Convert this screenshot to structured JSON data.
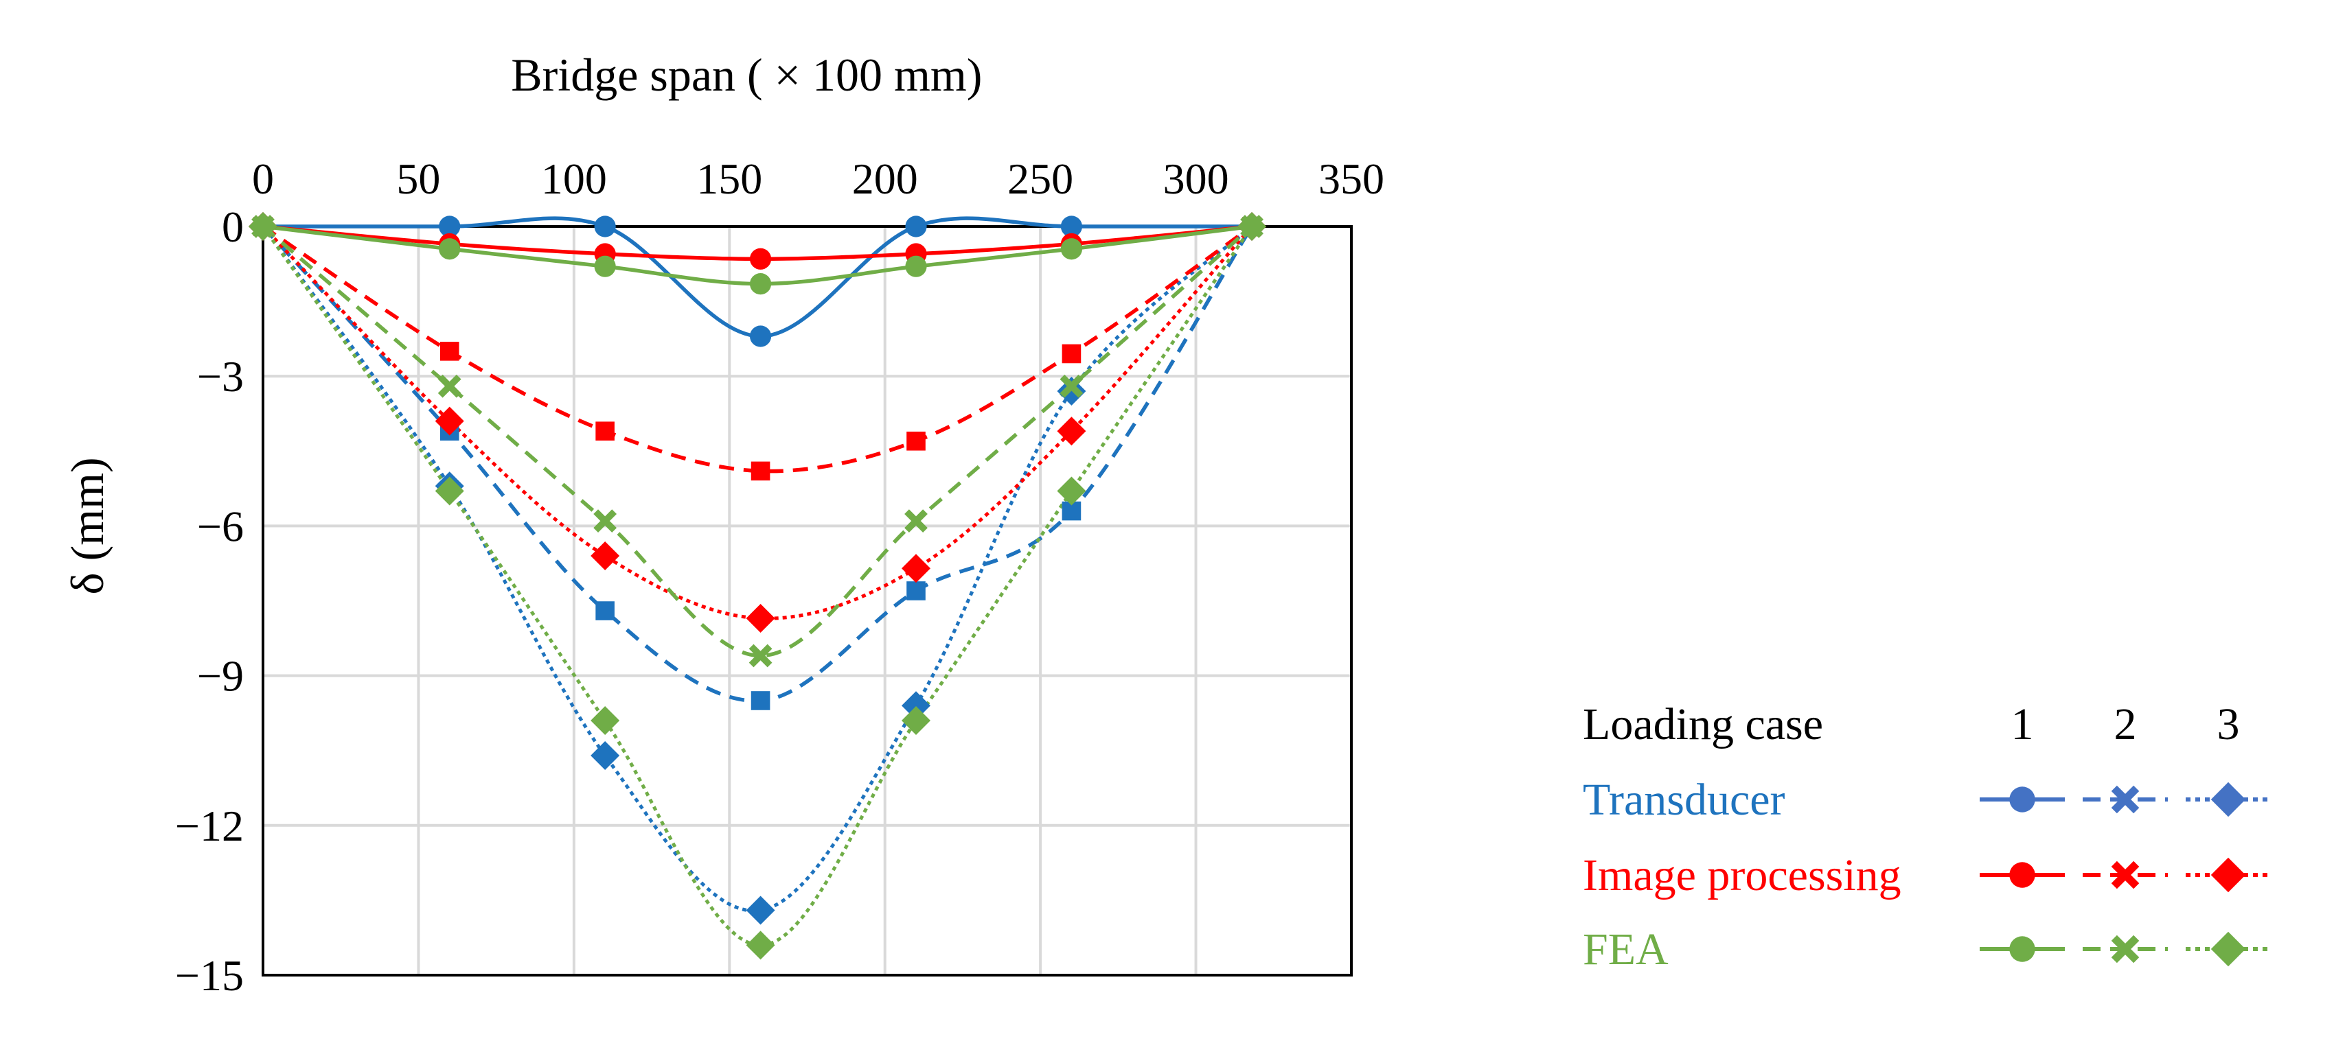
{
  "chart_data": {
    "type": "line",
    "xlabel": "Bridge span ( × 100 mm)",
    "ylabel": "δ (mm)",
    "xlim": [
      0,
      350
    ],
    "ylim": [
      -15,
      0
    ],
    "x_ticks": [
      0,
      50,
      100,
      150,
      200,
      250,
      300,
      350
    ],
    "y_ticks": [
      0,
      -3,
      -6,
      -9,
      -12,
      -15
    ],
    "y_tick_labels": [
      "0",
      "−3",
      "−6",
      "−9",
      "−12",
      "−15"
    ],
    "x_axis_position": "top",
    "grid": true,
    "x": [
      0,
      60,
      110,
      160,
      210,
      260,
      318
    ],
    "series": [
      {
        "name": "Transducer 1",
        "method": "Transducer",
        "loading_case": "1",
        "color": "#1e73be",
        "line_style": "solid",
        "marker": "circle",
        "values": [
          0,
          0,
          0,
          -2.2,
          0,
          0,
          0
        ]
      },
      {
        "name": "Transducer 2",
        "method": "Transducer",
        "loading_case": "2",
        "color": "#1e73be",
        "line_style": "dashed",
        "marker": "square",
        "values": [
          0,
          -4.1,
          -7.7,
          -9.5,
          -7.3,
          -5.7,
          0
        ]
      },
      {
        "name": "Transducer 3",
        "method": "Transducer",
        "loading_case": "3",
        "color": "#1e73be",
        "line_style": "dotted",
        "marker": "diamond",
        "values": [
          0,
          -5.2,
          -10.6,
          -13.7,
          -9.6,
          -3.3,
          0
        ]
      },
      {
        "name": "Image processing 1",
        "method": "Image processing",
        "loading_case": "1",
        "color": "#ff0000",
        "line_style": "solid",
        "marker": "circle",
        "values": [
          0,
          -0.35,
          -0.55,
          -0.65,
          -0.55,
          -0.35,
          0
        ]
      },
      {
        "name": "Image processing 2",
        "method": "Image processing",
        "loading_case": "2",
        "color": "#ff0000",
        "line_style": "dashed",
        "marker": "square",
        "values": [
          0,
          -2.5,
          -4.1,
          -4.9,
          -4.3,
          -2.55,
          0
        ]
      },
      {
        "name": "Image processing 3",
        "method": "Image processing",
        "loading_case": "3",
        "color": "#ff0000",
        "line_style": "dotted",
        "marker": "diamond",
        "values": [
          0,
          -3.9,
          -6.6,
          -7.85,
          -6.85,
          -4.1,
          0
        ]
      },
      {
        "name": "FEA 1",
        "method": "FEA",
        "loading_case": "1",
        "color": "#70ad47",
        "line_style": "solid",
        "marker": "circle",
        "values": [
          0,
          -0.45,
          -0.8,
          -1.15,
          -0.8,
          -0.45,
          0
        ]
      },
      {
        "name": "FEA 2",
        "method": "FEA",
        "loading_case": "2",
        "color": "#70ad47",
        "line_style": "dashed",
        "marker": "cross",
        "values": [
          0,
          -3.2,
          -5.9,
          -8.6,
          -5.9,
          -3.2,
          0
        ]
      },
      {
        "name": "FEA 3",
        "method": "FEA",
        "loading_case": "3",
        "color": "#70ad47",
        "line_style": "dotted",
        "marker": "diamond",
        "values": [
          0,
          -5.3,
          -9.9,
          -14.4,
          -9.9,
          -5.3,
          0
        ]
      }
    ],
    "legend": {
      "title": "Loading case",
      "case_labels": [
        "1",
        "2",
        "3"
      ],
      "rows": [
        {
          "label": "Transducer",
          "color": "#1e73be",
          "sample_color": "#4472c4"
        },
        {
          "label": "Image processing",
          "color": "#ff0000",
          "sample_color": "#ff0000"
        },
        {
          "label": "FEA",
          "color": "#70ad47",
          "sample_color": "#70ad47"
        }
      ],
      "sample_markers": [
        "circle",
        "cross",
        "diamond"
      ],
      "sample_styles": [
        "solid",
        "dashed",
        "dotted"
      ]
    }
  }
}
